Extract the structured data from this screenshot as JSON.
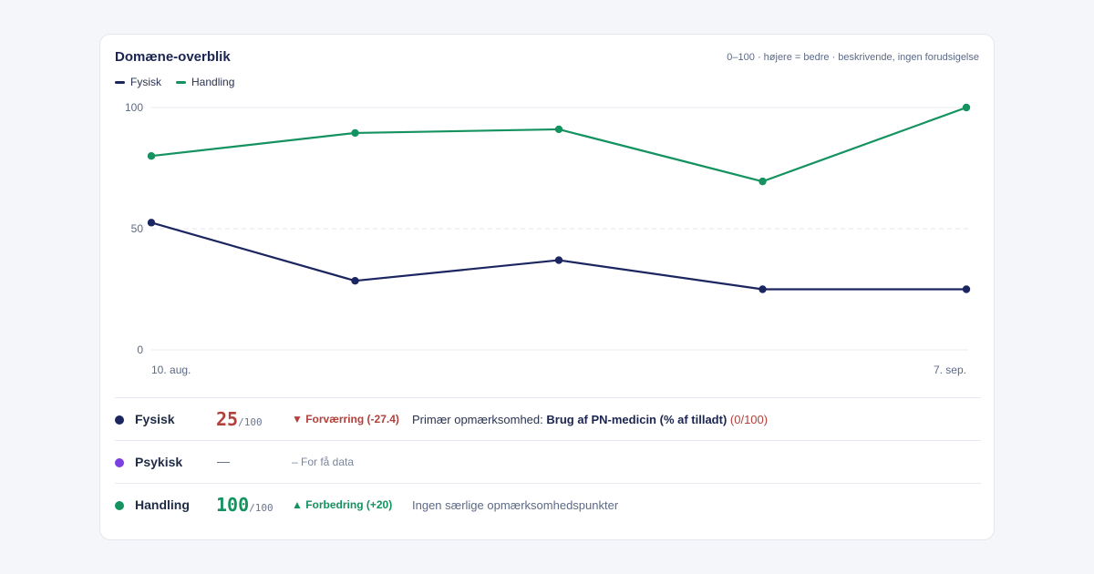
{
  "card": {
    "title": "Domæne-overblik",
    "subtitle": "0–100 · højere = bedre · beskrivende, ingen forudsigelse"
  },
  "chart_data": {
    "type": "line",
    "x": [
      "10. aug.",
      "",
      "",
      "",
      "7. sep."
    ],
    "x_tick_labels": [
      "10. aug.",
      "7. sep."
    ],
    "y_ticks": [
      "100",
      "50",
      "0"
    ],
    "ylim": [
      0,
      100
    ],
    "grid": true,
    "legend_position": "top-left",
    "series": [
      {
        "name": "Fysisk",
        "color": "#1b2560",
        "values": [
          52.5,
          28.5,
          37,
          25,
          25
        ]
      },
      {
        "name": "Handling",
        "color": "#14925f",
        "values": [
          80,
          89.5,
          91,
          69.5,
          100
        ]
      }
    ]
  },
  "rows": [
    {
      "name": "Fysisk",
      "dot_color": "#1b2560",
      "score": "25",
      "score_suffix": "/100",
      "score_color": "#b3403a",
      "trend": "▼ Forværring (-27.4)",
      "trend_color": "#b3403a",
      "note_prefix": "Primær opmærksomhed: ",
      "note_bold": "Brug af PN-medicin (% af tilladt)",
      "note_ref": "(0/100)"
    },
    {
      "name": "Psykisk",
      "dot_color": "#7b3fe4",
      "dash": "—",
      "trend": "– For få data"
    },
    {
      "name": "Handling",
      "dot_color": "#14925f",
      "score": "100",
      "score_suffix": "/100",
      "score_color": "#14925f",
      "trend": "▲ Forbedring (+20)",
      "trend_color": "#14925f",
      "note": "Ingen særlige opmærksomhedspunkter"
    }
  ]
}
